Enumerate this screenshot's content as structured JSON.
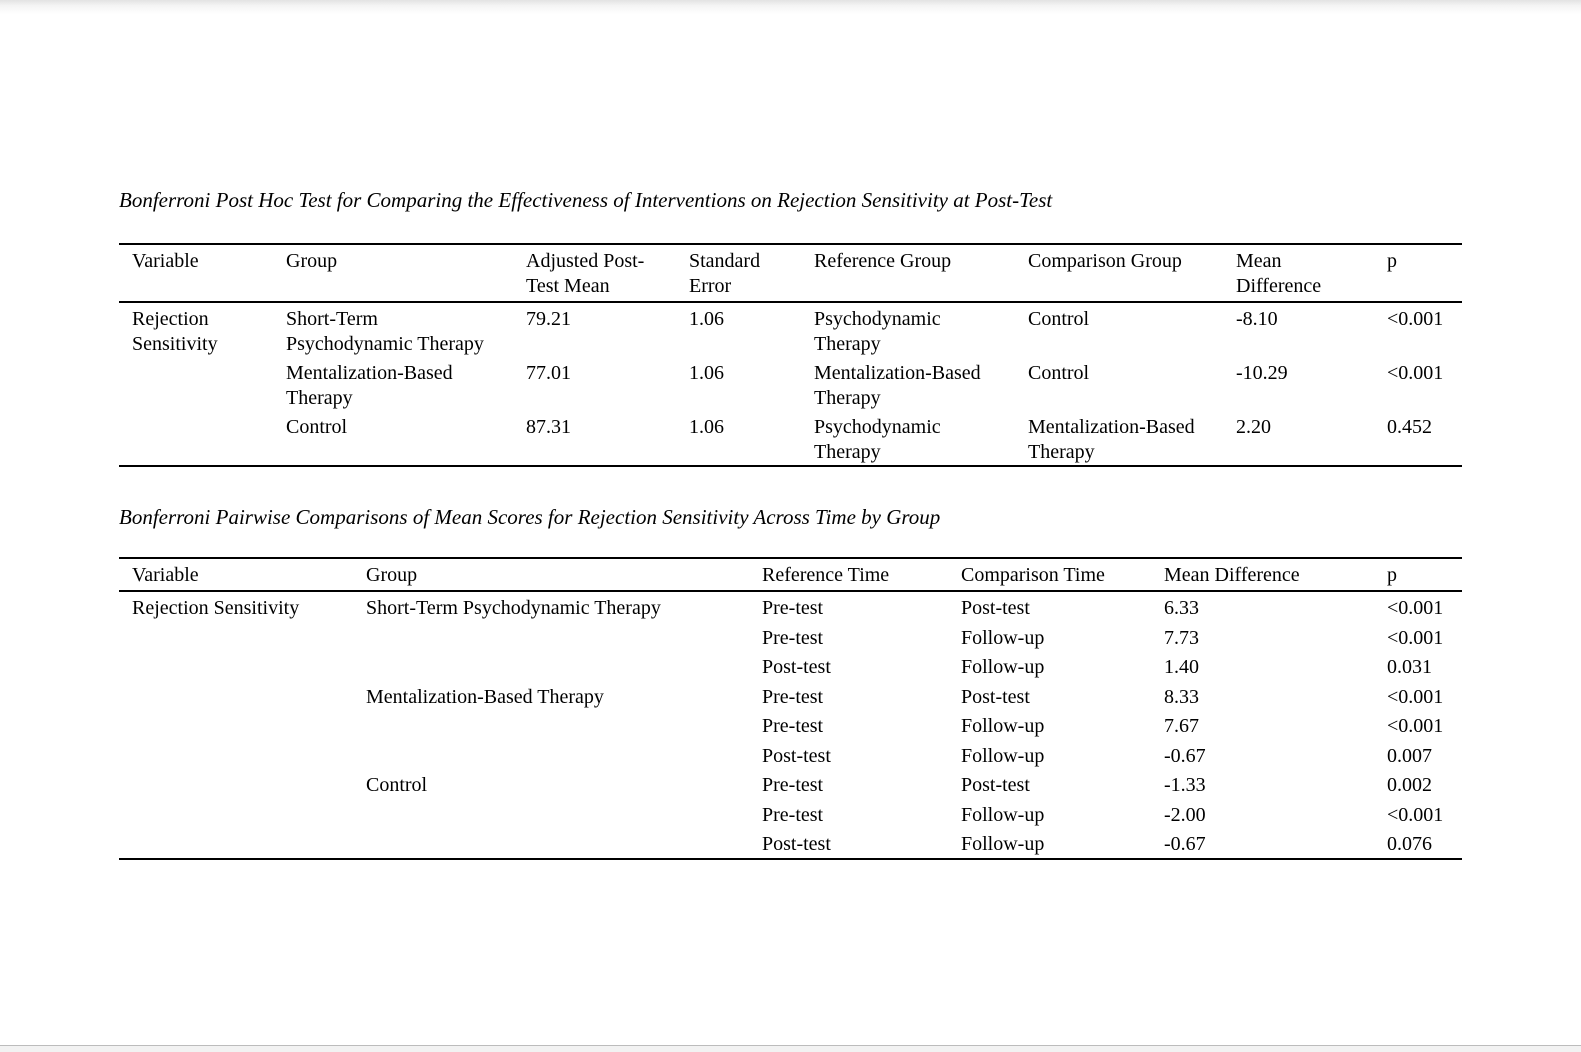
{
  "tables": [
    {
      "title": "Bonferroni Post Hoc Test for Comparing the Effectiveness of Interventions on Rejection Sensitivity at Post-Test",
      "columns": [
        {
          "id": "variable",
          "label": [
            "Variable"
          ]
        },
        {
          "id": "group",
          "label": [
            "Group"
          ]
        },
        {
          "id": "adjusted-mean",
          "label": [
            "Adjusted Post-",
            "Test Mean"
          ]
        },
        {
          "id": "standard-error",
          "label": [
            "Standard",
            "Error"
          ]
        },
        {
          "id": "reference-group",
          "label": [
            "Reference Group"
          ]
        },
        {
          "id": "comparison-group",
          "label": [
            "Comparison Group"
          ]
        },
        {
          "id": "mean-difference",
          "label": [
            "Mean",
            "Difference"
          ]
        },
        {
          "id": "p",
          "label": [
            "p"
          ]
        }
      ],
      "rows": [
        {
          "cells": [
            [
              "Rejection",
              "Sensitivity"
            ],
            [
              "Short-Term",
              "Psychodynamic Therapy"
            ],
            [
              "79.21"
            ],
            [
              "1.06"
            ],
            [
              "Psychodynamic",
              "Therapy"
            ],
            [
              "Control"
            ],
            [
              "-8.10"
            ],
            [
              "<0.001"
            ]
          ]
        },
        {
          "cells": [
            [],
            [
              "Mentalization-Based",
              "Therapy"
            ],
            [
              "77.01"
            ],
            [
              "1.06"
            ],
            [
              "Mentalization-Based",
              "Therapy"
            ],
            [
              "Control"
            ],
            [
              "-10.29"
            ],
            [
              "<0.001"
            ]
          ]
        },
        {
          "cells": [
            [],
            [
              "Control"
            ],
            [
              "87.31"
            ],
            [
              "1.06"
            ],
            [
              "Psychodynamic",
              "Therapy"
            ],
            [
              "Mentalization-Based",
              "Therapy"
            ],
            [
              "2.20"
            ],
            [
              "0.452"
            ]
          ]
        }
      ]
    },
    {
      "title": "Bonferroni Pairwise Comparisons of Mean Scores for Rejection Sensitivity Across Time by Group",
      "columns": [
        {
          "id": "variable",
          "label": [
            "Variable"
          ]
        },
        {
          "id": "group",
          "label": [
            "Group"
          ]
        },
        {
          "id": "reference-time",
          "label": [
            "Reference Time"
          ]
        },
        {
          "id": "comparison-time",
          "label": [
            "Comparison Time"
          ]
        },
        {
          "id": "mean-difference",
          "label": [
            "Mean Difference"
          ]
        },
        {
          "id": "p",
          "label": [
            "p"
          ]
        }
      ],
      "rows": [
        {
          "cells": [
            [
              "Rejection Sensitivity"
            ],
            [
              "Short-Term Psychodynamic Therapy"
            ],
            [
              "Pre-test"
            ],
            [
              "Post-test"
            ],
            [
              "6.33"
            ],
            [
              "<0.001"
            ]
          ]
        },
        {
          "cells": [
            [],
            [],
            [
              "Pre-test"
            ],
            [
              "Follow-up"
            ],
            [
              "7.73"
            ],
            [
              "<0.001"
            ]
          ]
        },
        {
          "cells": [
            [],
            [],
            [
              "Post-test"
            ],
            [
              "Follow-up"
            ],
            [
              "1.40"
            ],
            [
              "0.031"
            ]
          ]
        },
        {
          "cells": [
            [],
            [
              "Mentalization-Based Therapy"
            ],
            [
              "Pre-test"
            ],
            [
              "Post-test"
            ],
            [
              "8.33"
            ],
            [
              "<0.001"
            ]
          ]
        },
        {
          "cells": [
            [],
            [],
            [
              "Pre-test"
            ],
            [
              "Follow-up"
            ],
            [
              "7.67"
            ],
            [
              "<0.001"
            ]
          ]
        },
        {
          "cells": [
            [],
            [],
            [
              "Post-test"
            ],
            [
              "Follow-up"
            ],
            [
              "-0.67"
            ],
            [
              "0.007"
            ]
          ]
        },
        {
          "cells": [
            [],
            [
              "Control"
            ],
            [
              "Pre-test"
            ],
            [
              "Post-test"
            ],
            [
              "-1.33"
            ],
            [
              "0.002"
            ]
          ]
        },
        {
          "cells": [
            [],
            [],
            [
              "Pre-test"
            ],
            [
              "Follow-up"
            ],
            [
              "-2.00"
            ],
            [
              "<0.001"
            ]
          ]
        },
        {
          "cells": [
            [],
            [],
            [
              "Post-test"
            ],
            [
              "Follow-up"
            ],
            [
              "-0.67"
            ],
            [
              "0.076"
            ]
          ]
        }
      ]
    }
  ]
}
